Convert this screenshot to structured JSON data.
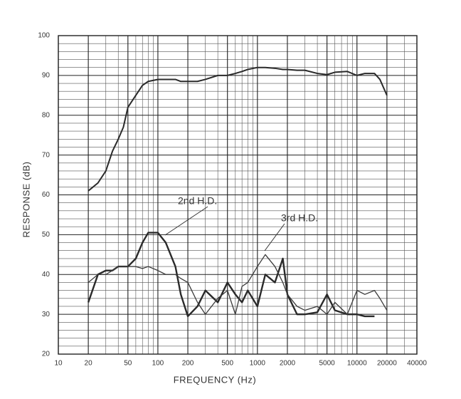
{
  "chart_data": {
    "type": "line",
    "x_label": "FREQUENCY (Hz)",
    "y_label": "RESPONSE (dB)",
    "x_log": true,
    "grid": true,
    "minor_grid": true,
    "xlim": [
      10,
      40000
    ],
    "ylim": [
      20,
      100
    ],
    "xticks": [
      10,
      20,
      50,
      100,
      200,
      500,
      1000,
      2000,
      5000,
      10000,
      20000,
      40000
    ],
    "yticks": [
      20,
      30,
      40,
      50,
      60,
      70,
      80,
      90,
      100
    ],
    "x": [
      20,
      25,
      30,
      35,
      40,
      45,
      50,
      60,
      70,
      80,
      100,
      120,
      150,
      170,
      200,
      250,
      300,
      400,
      500,
      600,
      700,
      800,
      1000,
      1200,
      1500,
      1800,
      2000,
      2500,
      3000,
      4000,
      5000,
      6000,
      8000,
      10000,
      12000,
      15000,
      17000,
      20000
    ],
    "series": [
      {
        "color": "#2a2a2a",
        "values": [
          61,
          63,
          66,
          71,
          74,
          77,
          82,
          85,
          87.5,
          88.5,
          89,
          89,
          89,
          88.5,
          88.5,
          88.5,
          89,
          90,
          90,
          90.5,
          91,
          91.5,
          92,
          92,
          91.8,
          91.5,
          91.5,
          91.3,
          91.3,
          90.5,
          90.2,
          90.8,
          91,
          90,
          90.5,
          90.5,
          89,
          85
        ]
      },
      {
        "name": "2nd H.D.",
        "color": "#2a2a2a",
        "values": [
          33,
          40,
          41,
          41,
          42,
          42,
          42,
          44,
          48,
          50.5,
          50.5,
          48,
          42,
          35,
          29.5,
          32,
          36,
          33,
          38,
          35,
          33,
          36,
          32,
          40,
          38,
          44,
          35,
          30,
          30,
          30.5,
          35,
          31,
          30,
          30,
          29.5,
          29.5,
          null,
          null
        ]
      },
      {
        "name": "3rd H.D.",
        "color": "#3a3a3a",
        "values": [
          38,
          40,
          40,
          41,
          42,
          42,
          42,
          42,
          41.5,
          42,
          41,
          40,
          40,
          39,
          38,
          33,
          30,
          34,
          36,
          30,
          37,
          38,
          42,
          45,
          42,
          38,
          35,
          32,
          31,
          32,
          30,
          33,
          30,
          36,
          35,
          36,
          34,
          31
        ]
      }
    ]
  }
}
